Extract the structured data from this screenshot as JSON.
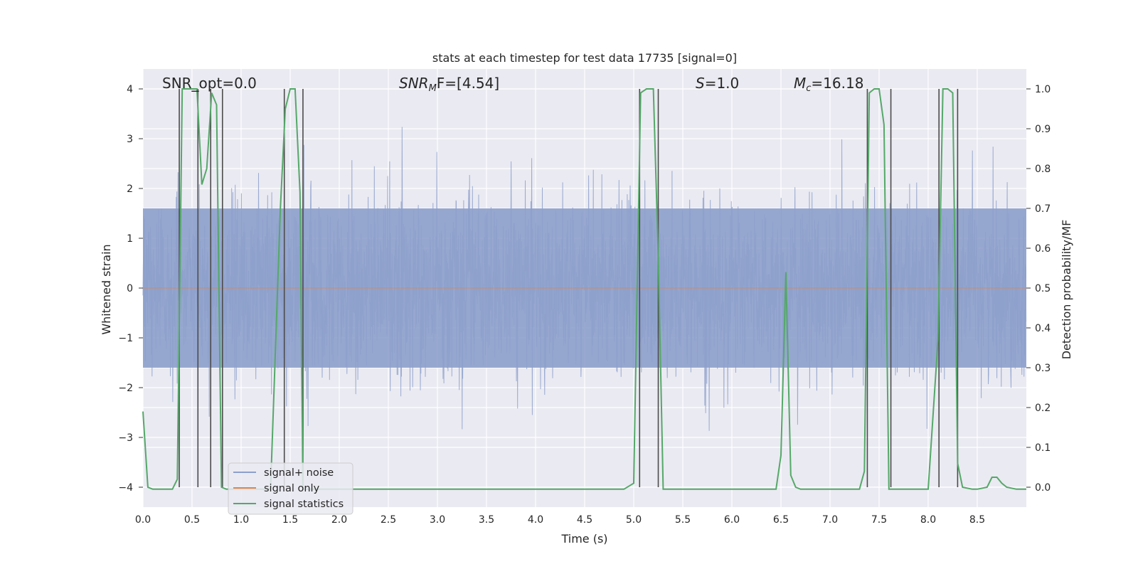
{
  "chart_data": {
    "type": "line",
    "title": "stats at each timestep for test data 17735 [signal=0]",
    "xlabel": "Time (s)",
    "ylabel_left": "Whitened strain",
    "ylabel_right": "Detection probability/MF",
    "xlim": [
      0,
      9.0
    ],
    "ylim_left": [
      -4.4,
      4.4
    ],
    "ylim_right": [
      -0.05,
      1.05
    ],
    "x_ticks": [
      0.0,
      0.5,
      1.0,
      1.5,
      2.0,
      2.5,
      3.0,
      3.5,
      4.0,
      4.5,
      5.0,
      5.5,
      6.0,
      6.5,
      7.0,
      7.5,
      8.0,
      8.5
    ],
    "x_tick_labels": [
      "0.0",
      "0.5",
      "1.0",
      "1.5",
      "2.0",
      "2.5",
      "3.0",
      "3.5",
      "4.0",
      "4.5",
      "5.0",
      "5.5",
      "6.0",
      "6.5",
      "7.0",
      "7.5",
      "8.0",
      "8.5"
    ],
    "y_ticks_left": [
      -4,
      -3,
      -2,
      -1,
      0,
      1,
      2,
      3,
      4
    ],
    "y_tick_labels_left": [
      "−4",
      "−3",
      "−2",
      "−1",
      "0",
      "1",
      "2",
      "3",
      "4"
    ],
    "y_ticks_right": [
      0.0,
      0.1,
      0.2,
      0.3,
      0.4,
      0.5,
      0.6,
      0.7,
      0.8,
      0.9,
      1.0
    ],
    "y_tick_labels_right": [
      "0.0",
      "0.1",
      "0.2",
      "0.3",
      "0.4",
      "0.5",
      "0.6",
      "0.7",
      "0.8",
      "0.9",
      "1.0"
    ],
    "grid": true,
    "annotations": {
      "snr_opt": "SNR_opt=0.0",
      "snr_mf_sym": "SNR",
      "snr_mf_sub": "M",
      "snr_mf_rest": "F=[4.54]",
      "s_sym": "S",
      "s_rest": "=1.0",
      "mc_sym": "M",
      "mc_sub": "c",
      "mc_rest": "=16.18"
    },
    "legend": {
      "placement": "lower-left",
      "entries": [
        "signal+ noise",
        "signal only",
        "signal statistics"
      ]
    },
    "colors": {
      "noise": "#8da0cb",
      "signal_only": "#dd8452",
      "statistics": "#55a868",
      "vlines": "#4c4c4c",
      "plot_bg": "#eaeaf2"
    },
    "series": [
      {
        "name": "signal+ noise",
        "axis": "left",
        "description": "whitened strain noise, approx. +/-1.6 core with spikes up to about +/-4",
        "sample_rate": 333,
        "seed": 17735
      },
      {
        "name": "signal only",
        "axis": "left",
        "x": [
          0,
          9.0
        ],
        "y": [
          0,
          0
        ]
      },
      {
        "name": "signal statistics",
        "axis": "right",
        "x": [
          0.0,
          0.05,
          0.1,
          0.2,
          0.3,
          0.35,
          0.4,
          0.45,
          0.55,
          0.6,
          0.65,
          0.7,
          0.75,
          0.8,
          0.85,
          0.9,
          0.95,
          1.0,
          1.1,
          1.3,
          1.4,
          1.45,
          1.5,
          1.55,
          1.6,
          1.63,
          1.68,
          1.75,
          1.8,
          2.0,
          2.5,
          3.0,
          3.5,
          4.0,
          4.5,
          4.9,
          5.0,
          5.07,
          5.13,
          5.2,
          5.25,
          5.3,
          5.38,
          5.5,
          6.0,
          6.45,
          6.5,
          6.55,
          6.6,
          6.65,
          6.7,
          6.8,
          7.0,
          7.3,
          7.35,
          7.4,
          7.45,
          7.5,
          7.55,
          7.6,
          7.65,
          7.7,
          7.8,
          8.0,
          8.1,
          8.15,
          8.2,
          8.25,
          8.3,
          8.35,
          8.45,
          8.5,
          8.6,
          8.65,
          8.7,
          8.75,
          8.8,
          8.9,
          9.0
        ],
        "y": [
          0.19,
          0.0,
          -0.005,
          -0.005,
          -0.005,
          0.02,
          1.0,
          1.0,
          1.0,
          0.76,
          0.8,
          0.99,
          0.96,
          0.0,
          -0.005,
          -0.005,
          -0.005,
          -0.005,
          -0.005,
          -0.005,
          0.7,
          0.95,
          1.0,
          1.0,
          0.74,
          -0.005,
          -0.005,
          -0.005,
          -0.005,
          -0.005,
          -0.005,
          -0.005,
          -0.005,
          -0.005,
          -0.005,
          -0.005,
          0.01,
          0.99,
          1.0,
          1.0,
          0.58,
          -0.005,
          -0.005,
          -0.005,
          -0.005,
          -0.005,
          0.08,
          0.54,
          0.03,
          0.0,
          -0.005,
          -0.005,
          -0.005,
          -0.005,
          0.04,
          0.99,
          1.0,
          1.0,
          0.91,
          -0.005,
          -0.005,
          -0.005,
          -0.005,
          -0.005,
          0.37,
          1.0,
          1.0,
          0.99,
          0.06,
          0.0,
          -0.005,
          -0.005,
          0.0,
          0.025,
          0.025,
          0.01,
          0.0,
          -0.005,
          -0.005
        ]
      }
    ],
    "vertical_lines_x": [
      0.37,
      0.56,
      0.69,
      0.81,
      1.44,
      1.63,
      5.06,
      5.25,
      7.38,
      7.62,
      8.11,
      8.3
    ]
  }
}
